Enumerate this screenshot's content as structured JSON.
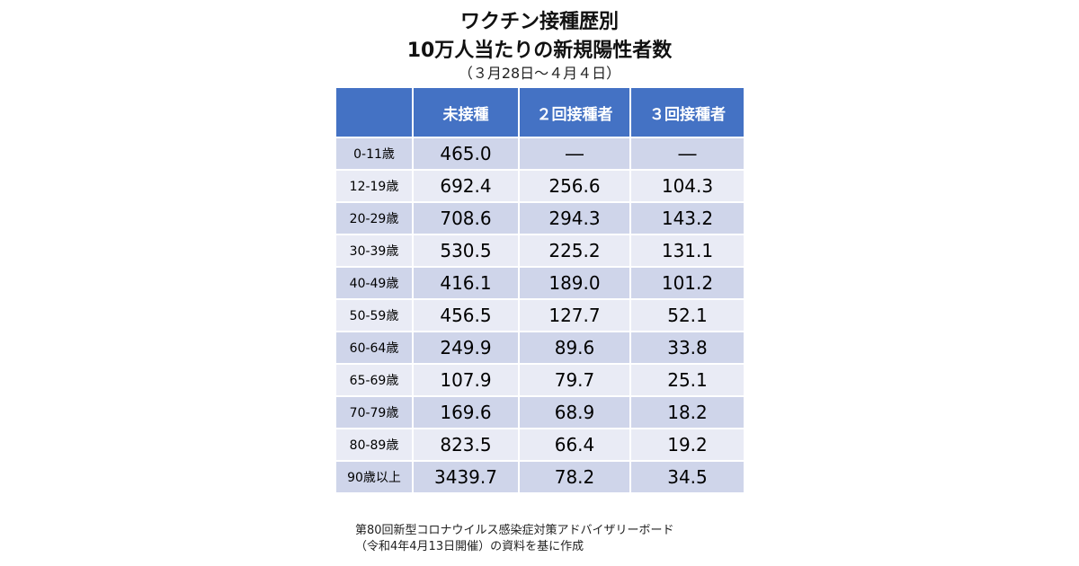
{
  "title_line1": "ワクチン接種歴別",
  "title_line2": "10万人当たりの新規陽性者数",
  "subtitle": "（３月28日～４月４日）",
  "chart_data": {
    "type": "table",
    "columns": [
      "",
      "未接種",
      "２回接種者",
      "３回接種者"
    ],
    "rows": [
      {
        "age": "0-11歳",
        "unvaccinated": "465.0",
        "two_doses": "―",
        "three_doses": "―"
      },
      {
        "age": "12-19歳",
        "unvaccinated": "692.4",
        "two_doses": "256.6",
        "three_doses": "104.3"
      },
      {
        "age": "20-29歳",
        "unvaccinated": "708.6",
        "two_doses": "294.3",
        "three_doses": "143.2"
      },
      {
        "age": "30-39歳",
        "unvaccinated": "530.5",
        "two_doses": "225.2",
        "three_doses": "131.1"
      },
      {
        "age": "40-49歳",
        "unvaccinated": "416.1",
        "two_doses": "189.0",
        "three_doses": "101.2"
      },
      {
        "age": "50-59歳",
        "unvaccinated": "456.5",
        "two_doses": "127.7",
        "three_doses": "52.1"
      },
      {
        "age": "60-64歳",
        "unvaccinated": "249.9",
        "two_doses": "89.6",
        "three_doses": "33.8"
      },
      {
        "age": "65-69歳",
        "unvaccinated": "107.9",
        "two_doses": "79.7",
        "three_doses": "25.1"
      },
      {
        "age": "70-79歳",
        "unvaccinated": "169.6",
        "two_doses": "68.9",
        "three_doses": "18.2"
      },
      {
        "age": "80-89歳",
        "unvaccinated": "823.5",
        "two_doses": "66.4",
        "three_doses": "19.2"
      },
      {
        "age": "90歳以上",
        "unvaccinated": "3439.7",
        "two_doses": "78.2",
        "three_doses": "34.5"
      }
    ]
  },
  "source_line1": "第80回新型コロナウイルス感染症対策アドバイザリーボード",
  "source_line2": "（令和4年4月13日開催）の資料を基に作成",
  "colors": {
    "header": "#4472c4",
    "row_dark": "#cfd5ea",
    "row_light": "#e9ebf5"
  }
}
